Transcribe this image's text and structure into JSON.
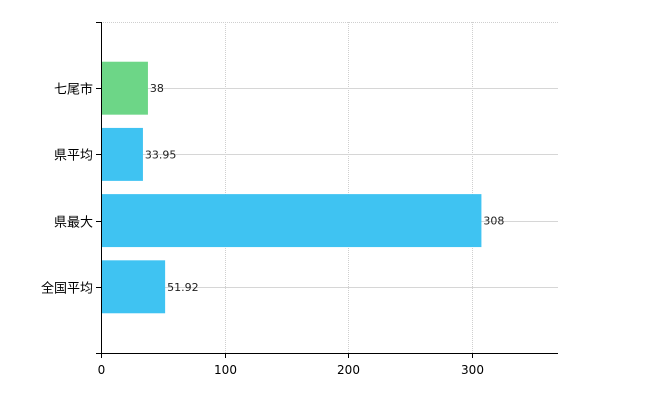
{
  "chart_data": {
    "type": "bar",
    "orientation": "horizontal",
    "categories": [
      "七尾市",
      "県平均",
      "県最大",
      "全国平均"
    ],
    "values": [
      38,
      33.95,
      308,
      51.92
    ],
    "value_labels": [
      "38",
      "33.95",
      "308",
      "51.92"
    ],
    "colors": [
      "#6dd687",
      "#3fc3f2",
      "#3fc3f2",
      "#3fc3f2"
    ],
    "xlim": [
      0,
      370
    ],
    "x_ticks": [
      0,
      100,
      200,
      300
    ],
    "x_tick_labels": [
      "0",
      "100",
      "200",
      "300"
    ],
    "grid": true,
    "legend": "none",
    "title": "",
    "xlabel": "",
    "ylabel": ""
  }
}
